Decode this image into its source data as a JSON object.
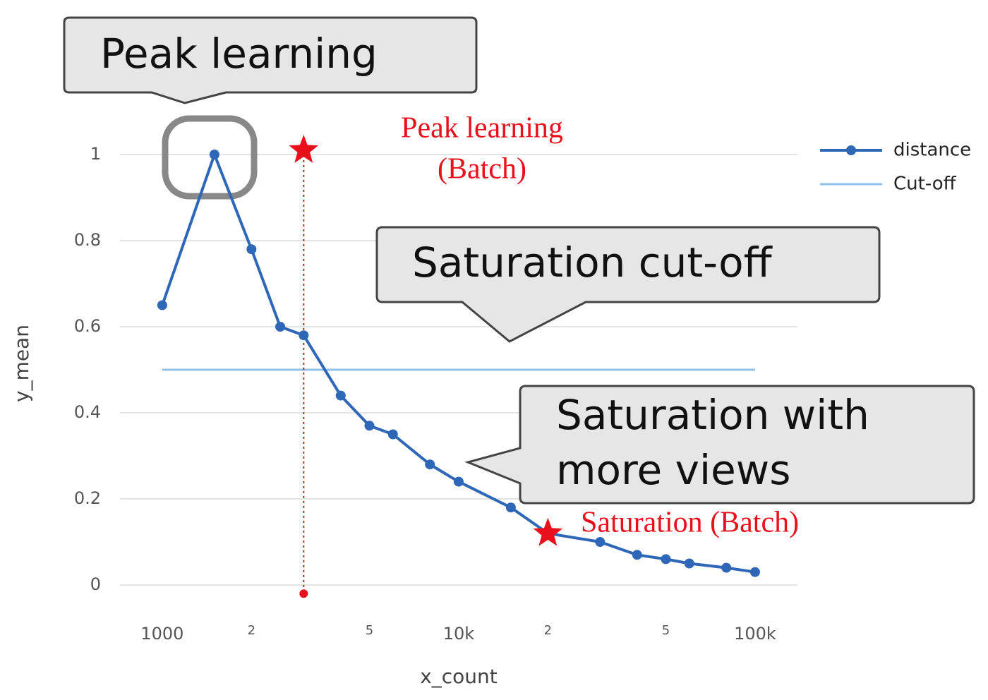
{
  "chart_data": {
    "type": "line",
    "x_label": "x_count",
    "y_label": "y_mean",
    "log_x": true,
    "grid": true,
    "legend": "upper right",
    "x": [
      1000,
      1500,
      2000,
      2500,
      3000,
      4000,
      5000,
      6000,
      8000,
      10000,
      15000,
      20000,
      30000,
      40000,
      50000,
      60000,
      80000,
      100000
    ],
    "series": [
      {
        "name": "distance",
        "color": "#2f67b8",
        "values": [
          0.65,
          1.0,
          0.78,
          0.6,
          0.58,
          0.44,
          0.37,
          0.35,
          0.28,
          0.24,
          0.18,
          0.12,
          0.1,
          0.07,
          0.06,
          0.05,
          0.04,
          0.03
        ]
      }
    ],
    "hlines": [
      {
        "name": "Cut-off",
        "color": "#8fc1ea",
        "value": 0.5
      }
    ],
    "xlim": [
      720,
      139000
    ],
    "ylim": [
      0,
      1
    ],
    "xticks": [
      1000,
      {
        "value": 2000,
        "label": "2"
      },
      {
        "value": 5000,
        "label": "5"
      },
      {
        "value": 10000,
        "label": "10k"
      },
      {
        "value": 20000,
        "label": "2"
      },
      {
        "value": 50000,
        "label": "5"
      },
      {
        "value": 100000,
        "label": "100k"
      }
    ],
    "yticks": [
      0,
      0.2,
      0.4,
      0.6,
      0.8,
      1
    ],
    "peak_batch": {
      "x": 3000,
      "y": 1.01,
      "y_end": -0.02,
      "color": "#e8101a",
      "label": [
        "Peak learning",
        "(Batch)"
      ]
    },
    "saturation_batch": {
      "x": 20000,
      "y": 0.12,
      "color": "#e8101a",
      "label": [
        "Saturation (Batch)"
      ]
    },
    "callouts": [
      [
        "Peak learning"
      ],
      [
        "Saturation cut-off"
      ],
      [
        "Saturation with",
        "more views"
      ]
    ]
  }
}
